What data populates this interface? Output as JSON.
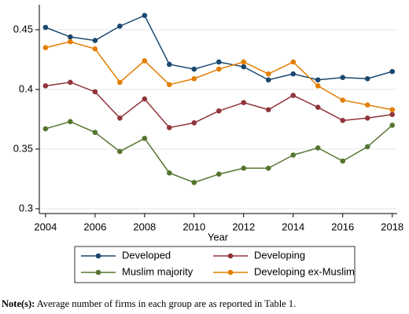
{
  "chart_data": {
    "type": "line",
    "x_label": "Year",
    "x": [
      2004,
      2005,
      2006,
      2007,
      2008,
      2009,
      2010,
      2011,
      2012,
      2013,
      2014,
      2015,
      2016,
      2017,
      2018
    ],
    "xlim": [
      2003.75,
      2018.2
    ],
    "xticks": [
      2004,
      2006,
      2008,
      2010,
      2012,
      2014,
      2016,
      2018
    ],
    "ylim": [
      0.296,
      0.471
    ],
    "yticks": [
      0.3,
      0.35,
      0.4,
      0.45
    ],
    "grid": true,
    "series": [
      {
        "name": "Developed",
        "color": "#1a476f",
        "values": [
          0.452,
          0.444,
          0.441,
          0.453,
          0.462,
          0.421,
          0.417,
          0.423,
          0.419,
          0.408,
          0.413,
          0.408,
          0.41,
          0.409,
          0.415
        ]
      },
      {
        "name": "Developing",
        "color": "#90353b",
        "values": [
          0.403,
          0.406,
          0.398,
          0.376,
          0.392,
          0.368,
          0.372,
          0.382,
          0.389,
          0.383,
          0.395,
          0.385,
          0.374,
          0.376,
          0.379
        ]
      },
      {
        "name": "Muslim majority",
        "color": "#55752f",
        "values": [
          0.367,
          0.373,
          0.364,
          0.348,
          0.359,
          0.33,
          0.322,
          0.329,
          0.334,
          0.334,
          0.345,
          0.351,
          0.34,
          0.352,
          0.37
        ]
      },
      {
        "name": "Developing ex-Muslim",
        "color": "#e37e00",
        "values": [
          0.435,
          0.44,
          0.434,
          0.406,
          0.424,
          0.404,
          0.409,
          0.417,
          0.423,
          0.413,
          0.423,
          0.403,
          0.391,
          0.387,
          0.383
        ]
      }
    ],
    "note_label": "Note(s):",
    "note_text": " Average number of firms in each group are as reported in Table 1."
  }
}
